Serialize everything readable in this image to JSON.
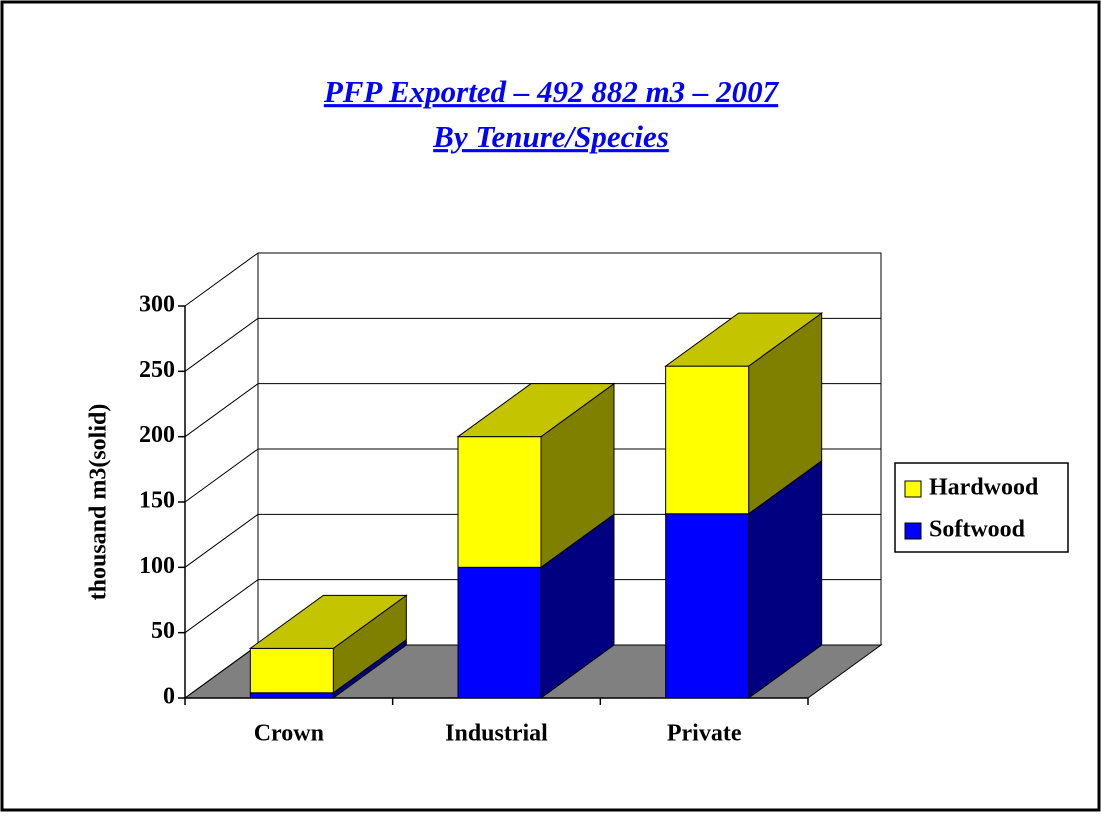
{
  "chart_data": {
    "type": "bar3d_stacked",
    "title": [
      "PFP Exported – 492 882 m3 – 2007",
      "By Tenure/Species"
    ],
    "y_label": "thousand m3(solid)",
    "categories": [
      "Crown",
      "Industrial",
      "Private"
    ],
    "series": [
      {
        "name": "Softwood",
        "color": "#0000ff",
        "side_color": "#000080",
        "top_color": "#3333ff",
        "values": [
          4,
          100,
          141
        ]
      },
      {
        "name": "Hardwood",
        "color": "#ffff00",
        "side_color": "#808000",
        "top_color": "#c4c400",
        "values": [
          34,
          100,
          113
        ]
      }
    ],
    "ylim": [
      0,
      300
    ],
    "yticks": [
      0,
      50,
      100,
      150,
      200,
      250,
      300
    ],
    "grid": true,
    "legend": "right"
  }
}
